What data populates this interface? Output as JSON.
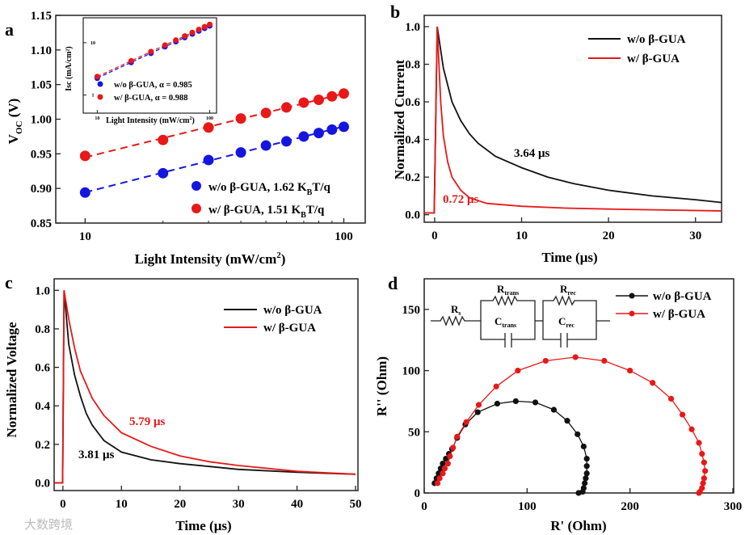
{
  "watermark": "大数跨境",
  "chart_data": [
    {
      "panel": "a",
      "type": "scatter",
      "label": "a",
      "xscale": "log",
      "xlim": [
        7.7,
        121
      ],
      "ylim": [
        0.85,
        1.15
      ],
      "xticks": [
        10,
        100
      ],
      "yticks": [
        0.85,
        0.9,
        0.95,
        1.0,
        1.05,
        1.1,
        1.15
      ],
      "xlabel": {
        "main": "Light Intensity (mW/cm",
        "sup": "2",
        "rest": ")"
      },
      "ylabel": {
        "main": "V",
        "sub": "OC",
        "rest": " (V)"
      },
      "x": [
        10,
        20,
        30,
        40,
        50,
        60,
        70,
        80,
        90,
        100
      ],
      "series": [
        {
          "name": "w/o β-GUA, 1.62 K",
          "sub": "B",
          "suffix": "T/q",
          "color": "#1515e0",
          "values": [
            0.894,
            0.922,
            0.941,
            0.952,
            0.962,
            0.968,
            0.975,
            0.98,
            0.985,
            0.989
          ]
        },
        {
          "name": "w/ β-GUA, 1.51 K",
          "sub": "B",
          "suffix": "T/q",
          "color": "#e81818",
          "values": [
            0.947,
            0.97,
            0.988,
            1.001,
            1.009,
            1.017,
            1.024,
            1.028,
            1.033,
            1.037
          ]
        }
      ],
      "inset": {
        "type": "scatter",
        "xscale": "log",
        "yscale": "log",
        "xlabel": {
          "main": "Light Intensity (mW/cm",
          "sup": "2",
          "rest": ")"
        },
        "ylabel": "Isc (mA/cm²)",
        "xticks": [
          10,
          100
        ],
        "yticks": [
          1,
          10
        ],
        "series": [
          {
            "name": "w/o  β-GUA, α = 0.985",
            "color": "#1515e0",
            "values": [
              2.1,
              4.2,
              6.3,
              8.4,
              10.5,
              12.6,
              14.7,
              16.8,
              18.9,
              21.0
            ]
          },
          {
            "name": "w/  β-GUA, α = 0.988",
            "color": "#e81818",
            "values": [
              2.25,
              4.5,
              6.75,
              9.0,
              11.2,
              13.4,
              15.7,
              17.9,
              20.2,
              22.4
            ]
          }
        ]
      }
    },
    {
      "panel": "b",
      "type": "line",
      "label": "b",
      "xlim": [
        -1.2,
        33
      ],
      "ylim": [
        -0.04,
        1.06
      ],
      "xticks": [
        0,
        10,
        20,
        30
      ],
      "yticks": [
        0.0,
        0.2,
        0.4,
        0.6,
        0.8,
        1.0
      ],
      "xlabel": "Time (μs)",
      "ylabel": "Normalized Current",
      "series": [
        {
          "name": "w/o β-GUA",
          "color": "#111111",
          "annotation": "3.64 μs",
          "x": [
            -1.2,
            -0.05,
            0.3,
            1,
            2,
            3,
            4,
            5,
            7,
            10,
            13,
            16,
            20,
            25,
            30,
            33
          ],
          "y": [
            0.01,
            0.01,
            1.0,
            0.78,
            0.6,
            0.5,
            0.43,
            0.38,
            0.31,
            0.25,
            0.2,
            0.165,
            0.13,
            0.1,
            0.08,
            0.065
          ]
        },
        {
          "name": "w/ β-GUA",
          "color": "#e81818",
          "annotation": "0.72 μs",
          "x": [
            -1.2,
            -0.05,
            0.3,
            0.7,
            1,
            1.5,
            2,
            3,
            4,
            6,
            10,
            15,
            20,
            33
          ],
          "y": [
            0.01,
            0.01,
            1.0,
            0.6,
            0.42,
            0.28,
            0.2,
            0.13,
            0.09,
            0.06,
            0.045,
            0.035,
            0.03,
            0.02
          ]
        }
      ]
    },
    {
      "panel": "c",
      "type": "line",
      "label": "c",
      "xlim": [
        -1.5,
        50
      ],
      "ylim": [
        -0.04,
        1.06
      ],
      "xticks": [
        0,
        10,
        20,
        30,
        40,
        50
      ],
      "yticks": [
        0.0,
        0.2,
        0.4,
        0.6,
        0.8,
        1.0
      ],
      "xlabel": "Time (μs)",
      "ylabel": "Normalized Voltage",
      "series": [
        {
          "name": "w/o β-GUA",
          "color": "#111111",
          "annotation": "3.81 μs",
          "x": [
            -1.5,
            -0.05,
            0.2,
            1,
            2,
            3,
            4,
            5,
            7,
            10,
            15,
            20,
            25,
            30,
            40,
            50
          ],
          "y": [
            0,
            0,
            1.0,
            0.72,
            0.56,
            0.45,
            0.36,
            0.3,
            0.22,
            0.16,
            0.12,
            0.1,
            0.085,
            0.07,
            0.055,
            0.045
          ]
        },
        {
          "name": "w/ β-GUA",
          "color": "#e81818",
          "annotation": "5.79 μs",
          "x": [
            -1.5,
            -0.05,
            0.2,
            1,
            2,
            3,
            5,
            7,
            10,
            15,
            20,
            25,
            30,
            40,
            50
          ],
          "y": [
            0,
            0,
            1.0,
            0.85,
            0.7,
            0.58,
            0.44,
            0.35,
            0.26,
            0.19,
            0.14,
            0.11,
            0.09,
            0.06,
            0.045
          ]
        }
      ]
    },
    {
      "panel": "d",
      "type": "line",
      "label": "d",
      "xlim": [
        0,
        300
      ],
      "ylim": [
        0,
        175
      ],
      "xticks": [
        0,
        100,
        200,
        300
      ],
      "yticks": [
        0,
        50,
        100,
        150
      ],
      "xlabel": "R' (Ohm)",
      "ylabel": "R'' (Ohm)",
      "circuit": {
        "rs": "R",
        "rs_sub": "s",
        "rt": "R",
        "rt_sub": "trans",
        "ct": "C",
        "ct_sub": "trans",
        "rr": "R",
        "rr_sub": "rec",
        "cr": "C",
        "cr_sub": "rec"
      },
      "series": [
        {
          "name": "w/o β-GUA",
          "color": "#111111",
          "x": [
            10,
            12,
            14,
            16,
            18,
            21,
            24,
            27,
            32,
            40,
            52,
            71,
            89,
            108,
            126,
            139,
            149,
            155,
            158,
            158,
            158,
            157,
            156,
            155,
            154,
            150
          ],
          "y": [
            8,
            12,
            16,
            20,
            24,
            28,
            32,
            36,
            45,
            56,
            66,
            73,
            75,
            74,
            68,
            59,
            48,
            38,
            28,
            22,
            16,
            12,
            8,
            4,
            1,
            0
          ]
        },
        {
          "name": "w/ β-GUA",
          "color": "#e81818",
          "x": [
            13,
            15,
            18,
            20,
            23,
            25,
            28,
            32,
            41,
            53,
            70,
            91,
            118,
            147,
            175,
            200,
            222,
            240,
            251,
            260,
            267,
            270,
            272,
            273,
            272,
            271,
            270,
            268,
            267
          ],
          "y": [
            8,
            12,
            16,
            20,
            24,
            30,
            37,
            46,
            58,
            72,
            87,
            100,
            108,
            111,
            108,
            100,
            90,
            77,
            64,
            52,
            41,
            32,
            25,
            18,
            12,
            8,
            4,
            1,
            0
          ]
        }
      ]
    }
  ]
}
